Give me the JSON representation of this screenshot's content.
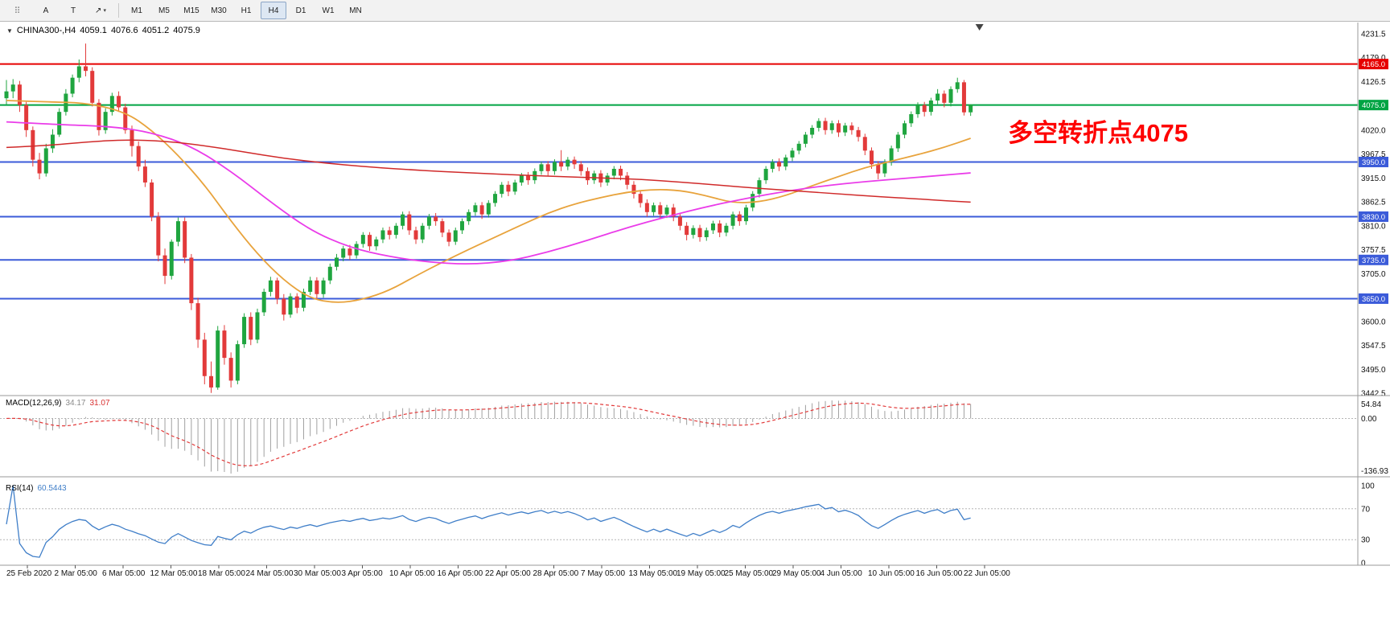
{
  "toolbar": {
    "tools": [
      {
        "name": "window-handle-icon",
        "glyph": "⠿"
      },
      {
        "name": "arrow-cursor-tool",
        "glyph": "A"
      },
      {
        "name": "text-tool",
        "glyph": "T"
      },
      {
        "name": "draw-arrow-tool",
        "glyph": "↗",
        "caret": "▾"
      }
    ],
    "timeframes": [
      "M1",
      "M5",
      "M15",
      "M30",
      "H1",
      "H4",
      "D1",
      "W1",
      "MN"
    ],
    "active_timeframe": "H4"
  },
  "chart": {
    "collapse_icon": "▼",
    "symbol_header": "CHINA300-,H4",
    "ohlc": {
      "open": "4059.1",
      "high": "4076.6",
      "low": "4051.2",
      "close": "4075.9"
    },
    "annotation": {
      "text": "多空转折点4075",
      "color": "#fe0000"
    },
    "price_axis": {
      "min": 3442.5,
      "max": 4231.5,
      "ticks": [
        4231.5,
        4179.0,
        4126.5,
        4020.0,
        3967.5,
        3915.0,
        3862.5,
        3810.0,
        3757.5,
        3705.0,
        3600.0,
        3547.5,
        3495.0,
        3442.5
      ],
      "badges": [
        {
          "price": 4165.0,
          "label": "4165.0",
          "color": "#e60000"
        },
        {
          "price": 4075.0,
          "label": "4075.0",
          "color": "#00a443"
        },
        {
          "price": 3950.0,
          "label": "3950.0",
          "color": "#3b5bd9"
        },
        {
          "price": 3830.0,
          "label": "3830.0",
          "color": "#3b5bd9"
        },
        {
          "price": 3735.0,
          "label": "3735.0",
          "color": "#3b5bd9"
        },
        {
          "price": 3650.0,
          "label": "3650.0",
          "color": "#3b5bd9"
        }
      ]
    },
    "hlines": [
      {
        "price": 4165.0,
        "color": "#e60000"
      },
      {
        "price": 4075.0,
        "color": "#00a443"
      },
      {
        "price": 3950.0,
        "color": "#3b5bd9"
      },
      {
        "price": 3830.0,
        "color": "#3b5bd9"
      },
      {
        "price": 3735.0,
        "color": "#3b5bd9"
      },
      {
        "price": 3650.0,
        "color": "#3b5bd9"
      }
    ],
    "time_axis": [
      "25 Feb 2020",
      "2 Mar 05:00",
      "6 Mar 05:00",
      "12 Mar 05:00",
      "18 Mar 05:00",
      "24 Mar 05:00",
      "30 Mar 05:00",
      "3 Apr 05:00",
      "10 Apr 05:00",
      "16 Apr 05:00",
      "22 Apr 05:00",
      "28 Apr 05:00",
      "7 May 05:00",
      "13 May 05:00",
      "19 May 05:00",
      "25 May 05:00",
      "29 May 05:00",
      "4 Jun 05:00",
      "10 Jun 05:00",
      "16 Jun 05:00",
      "22 Jun 05:00"
    ]
  },
  "chart_data": {
    "type": "candlestick",
    "symbol": "CHINA300-",
    "timeframe": "H4",
    "ylim": [
      3442.5,
      4231.5
    ],
    "bull_color": "#1fa53f",
    "bear_color": "#e23a3a",
    "candles": [
      [
        4090,
        4130,
        4075,
        4105
      ],
      [
        4105,
        4132,
        4090,
        4120
      ],
      [
        4120,
        4128,
        4060,
        4075
      ],
      [
        4075,
        4082,
        4005,
        4020
      ],
      [
        4020,
        4028,
        3940,
        3955
      ],
      [
        3955,
        3970,
        3912,
        3925
      ],
      [
        3925,
        3990,
        3918,
        3980
      ],
      [
        3980,
        4022,
        3970,
        4010
      ],
      [
        4010,
        4068,
        4005,
        4060
      ],
      [
        4060,
        4110,
        4052,
        4100
      ],
      [
        4100,
        4142,
        4092,
        4135
      ],
      [
        4135,
        4175,
        4125,
        4160
      ],
      [
        4160,
        4210,
        4138,
        4150
      ],
      [
        4150,
        4158,
        4072,
        4080
      ],
      [
        4080,
        4088,
        4008,
        4020
      ],
      [
        4020,
        4068,
        4012,
        4060
      ],
      [
        4060,
        4102,
        4052,
        4095
      ],
      [
        4095,
        4105,
        4060,
        4070
      ],
      [
        4070,
        4078,
        4012,
        4020
      ],
      [
        4020,
        4030,
        3962,
        3985
      ],
      [
        3985,
        3995,
        3930,
        3940
      ],
      [
        3940,
        3955,
        3895,
        3905
      ],
      [
        3905,
        3912,
        3820,
        3830
      ],
      [
        3830,
        3840,
        3732,
        3745
      ],
      [
        3745,
        3760,
        3682,
        3700
      ],
      [
        3700,
        3780,
        3692,
        3775
      ],
      [
        3775,
        3828,
        3765,
        3820
      ],
      [
        3820,
        3828,
        3728,
        3740
      ],
      [
        3740,
        3748,
        3625,
        3640
      ],
      [
        3640,
        3652,
        3542,
        3560
      ],
      [
        3560,
        3575,
        3462,
        3480
      ],
      [
        3480,
        3512,
        3443,
        3455
      ],
      [
        3455,
        3590,
        3450,
        3580
      ],
      [
        3580,
        3592,
        3505,
        3520
      ],
      [
        3520,
        3532,
        3455,
        3470
      ],
      [
        3470,
        3558,
        3462,
        3550
      ],
      [
        3550,
        3618,
        3542,
        3610
      ],
      [
        3610,
        3620,
        3548,
        3560
      ],
      [
        3560,
        3628,
        3552,
        3620
      ],
      [
        3620,
        3672,
        3612,
        3665
      ],
      [
        3665,
        3698,
        3655,
        3690
      ],
      [
        3690,
        3696,
        3638,
        3650
      ],
      [
        3650,
        3660,
        3602,
        3615
      ],
      [
        3615,
        3662,
        3608,
        3655
      ],
      [
        3655,
        3662,
        3618,
        3630
      ],
      [
        3630,
        3672,
        3622,
        3665
      ],
      [
        3665,
        3698,
        3658,
        3690
      ],
      [
        3690,
        3697,
        3648,
        3660
      ],
      [
        3660,
        3696,
        3652,
        3690
      ],
      [
        3690,
        3727,
        3682,
        3720
      ],
      [
        3720,
        3748,
        3712,
        3740
      ],
      [
        3740,
        3766,
        3732,
        3760
      ],
      [
        3760,
        3768,
        3735,
        3745
      ],
      [
        3745,
        3776,
        3738,
        3770
      ],
      [
        3770,
        3796,
        3762,
        3790
      ],
      [
        3790,
        3796,
        3755,
        3765
      ],
      [
        3765,
        3786,
        3756,
        3780
      ],
      [
        3780,
        3806,
        3772,
        3800
      ],
      [
        3800,
        3808,
        3780,
        3790
      ],
      [
        3790,
        3816,
        3782,
        3810
      ],
      [
        3810,
        3841,
        3802,
        3835
      ],
      [
        3835,
        3842,
        3790,
        3800
      ],
      [
        3800,
        3808,
        3770,
        3780
      ],
      [
        3780,
        3816,
        3772,
        3810
      ],
      [
        3810,
        3836,
        3802,
        3830
      ],
      [
        3830,
        3838,
        3810,
        3820
      ],
      [
        3820,
        3826,
        3785,
        3795
      ],
      [
        3795,
        3802,
        3765,
        3775
      ],
      [
        3775,
        3806,
        3768,
        3800
      ],
      [
        3800,
        3826,
        3792,
        3820
      ],
      [
        3820,
        3846,
        3812,
        3840
      ],
      [
        3840,
        3861,
        3832,
        3855
      ],
      [
        3855,
        3862,
        3825,
        3835
      ],
      [
        3835,
        3866,
        3828,
        3860
      ],
      [
        3860,
        3886,
        3852,
        3880
      ],
      [
        3880,
        3906,
        3872,
        3900
      ],
      [
        3900,
        3908,
        3875,
        3885
      ],
      [
        3885,
        3911,
        3878,
        3905
      ],
      [
        3905,
        3926,
        3898,
        3920
      ],
      [
        3920,
        3928,
        3900,
        3910
      ],
      [
        3910,
        3936,
        3902,
        3930
      ],
      [
        3930,
        3951,
        3922,
        3945
      ],
      [
        3945,
        3952,
        3920,
        3930
      ],
      [
        3930,
        3956,
        3922,
        3950
      ],
      [
        3950,
        3976,
        3930,
        3940
      ],
      [
        3940,
        3961,
        3932,
        3955
      ],
      [
        3955,
        3962,
        3935,
        3945
      ],
      [
        3945,
        3952,
        3920,
        3930
      ],
      [
        3930,
        3938,
        3900,
        3910
      ],
      [
        3910,
        3931,
        3902,
        3925
      ],
      [
        3925,
        3932,
        3895,
        3905
      ],
      [
        3905,
        3926,
        3898,
        3920
      ],
      [
        3920,
        3941,
        3912,
        3935
      ],
      [
        3935,
        3942,
        3910,
        3920
      ],
      [
        3920,
        3928,
        3890,
        3900
      ],
      [
        3900,
        3908,
        3870,
        3880
      ],
      [
        3880,
        3888,
        3850,
        3860
      ],
      [
        3860,
        3868,
        3830,
        3840
      ],
      [
        3840,
        3861,
        3832,
        3855
      ],
      [
        3855,
        3862,
        3825,
        3835
      ],
      [
        3835,
        3856,
        3827,
        3850
      ],
      [
        3850,
        3858,
        3820,
        3830
      ],
      [
        3830,
        3838,
        3800,
        3810
      ],
      [
        3810,
        3818,
        3778,
        3790
      ],
      [
        3790,
        3811,
        3782,
        3805
      ],
      [
        3805,
        3812,
        3775,
        3785
      ],
      [
        3785,
        3806,
        3777,
        3800
      ],
      [
        3800,
        3821,
        3792,
        3815
      ],
      [
        3815,
        3822,
        3785,
        3795
      ],
      [
        3795,
        3816,
        3787,
        3810
      ],
      [
        3810,
        3841,
        3802,
        3835
      ],
      [
        3835,
        3842,
        3810,
        3820
      ],
      [
        3820,
        3856,
        3812,
        3850
      ],
      [
        3850,
        3886,
        3842,
        3880
      ],
      [
        3880,
        3916,
        3872,
        3910
      ],
      [
        3910,
        3941,
        3902,
        3935
      ],
      [
        3935,
        3956,
        3927,
        3950
      ],
      [
        3950,
        3958,
        3930,
        3940
      ],
      [
        3940,
        3966,
        3932,
        3960
      ],
      [
        3960,
        3981,
        3952,
        3975
      ],
      [
        3975,
        3996,
        3967,
        3990
      ],
      [
        3990,
        4016,
        3982,
        4010
      ],
      [
        4010,
        4031,
        4002,
        4025
      ],
      [
        4025,
        4046,
        4017,
        4040
      ],
      [
        4040,
        4047,
        4010,
        4020
      ],
      [
        4020,
        4041,
        4012,
        4035
      ],
      [
        4035,
        4042,
        4005,
        4015
      ],
      [
        4015,
        4036,
        4007,
        4030
      ],
      [
        4030,
        4037,
        4010,
        4020
      ],
      [
        4020,
        4027,
        3995,
        4005
      ],
      [
        4005,
        4012,
        3965,
        3975
      ],
      [
        3975,
        3982,
        3935,
        3945
      ],
      [
        3945,
        3952,
        3912,
        3925
      ],
      [
        3925,
        3956,
        3917,
        3950
      ],
      [
        3950,
        3986,
        3942,
        3980
      ],
      [
        3980,
        4016,
        3972,
        4010
      ],
      [
        4010,
        4041,
        4002,
        4035
      ],
      [
        4035,
        4061,
        4027,
        4055
      ],
      [
        4055,
        4081,
        4047,
        4075
      ],
      [
        4075,
        4082,
        4050,
        4060
      ],
      [
        4060,
        4091,
        4052,
        4085
      ],
      [
        4085,
        4110,
        4077,
        4100
      ],
      [
        4100,
        4107,
        4070,
        4080
      ],
      [
        4080,
        4116,
        4072,
        4110
      ],
      [
        4110,
        4135,
        4102,
        4125
      ],
      [
        4125,
        4130,
        4052,
        4059
      ],
      [
        4059.1,
        4076.6,
        4051.2,
        4075.9
      ]
    ],
    "ma_lines": [
      {
        "name": "ma-fast-orange",
        "color": "#e8a33c",
        "width": 1.8,
        "points": [
          [
            0,
            4085
          ],
          [
            6,
            4082
          ],
          [
            12,
            4080
          ],
          [
            18,
            4060
          ],
          [
            22,
            4020
          ],
          [
            26,
            3965
          ],
          [
            30,
            3900
          ],
          [
            34,
            3820
          ],
          [
            38,
            3748
          ],
          [
            42,
            3690
          ],
          [
            46,
            3650
          ],
          [
            50,
            3640
          ],
          [
            54,
            3648
          ],
          [
            58,
            3668
          ],
          [
            62,
            3700
          ],
          [
            66,
            3730
          ],
          [
            70,
            3758
          ],
          [
            74,
            3785
          ],
          [
            78,
            3812
          ],
          [
            82,
            3838
          ],
          [
            86,
            3858
          ],
          [
            90,
            3872
          ],
          [
            94,
            3884
          ],
          [
            98,
            3890
          ],
          [
            102,
            3888
          ],
          [
            106,
            3876
          ],
          [
            110,
            3860
          ],
          [
            114,
            3862
          ],
          [
            118,
            3876
          ],
          [
            122,
            3898
          ],
          [
            126,
            3918
          ],
          [
            130,
            3938
          ],
          [
            134,
            3952
          ],
          [
            138,
            3966
          ],
          [
            142,
            3982
          ],
          [
            146,
            4002
          ]
        ]
      },
      {
        "name": "ma-mid-magenta",
        "color": "#ea3ce9",
        "width": 1.8,
        "points": [
          [
            0,
            4038
          ],
          [
            8,
            4032
          ],
          [
            16,
            4028
          ],
          [
            22,
            4015
          ],
          [
            28,
            3985
          ],
          [
            34,
            3930
          ],
          [
            40,
            3862
          ],
          [
            46,
            3800
          ],
          [
            52,
            3762
          ],
          [
            58,
            3742
          ],
          [
            64,
            3730
          ],
          [
            70,
            3725
          ],
          [
            76,
            3732
          ],
          [
            82,
            3752
          ],
          [
            88,
            3778
          ],
          [
            94,
            3806
          ],
          [
            100,
            3830
          ],
          [
            106,
            3852
          ],
          [
            112,
            3870
          ],
          [
            118,
            3886
          ],
          [
            124,
            3898
          ],
          [
            130,
            3907
          ],
          [
            136,
            3914
          ],
          [
            141,
            3920
          ],
          [
            146,
            3926
          ]
        ]
      },
      {
        "name": "ma-slow-red",
        "color": "#d02a2a",
        "width": 1.5,
        "points": [
          [
            0,
            3982
          ],
          [
            6,
            3986
          ],
          [
            12,
            3994
          ],
          [
            18,
            3999
          ],
          [
            24,
            3996
          ],
          [
            30,
            3986
          ],
          [
            36,
            3972
          ],
          [
            42,
            3958
          ],
          [
            48,
            3948
          ],
          [
            54,
            3940
          ],
          [
            60,
            3934
          ],
          [
            66,
            3929
          ],
          [
            72,
            3925
          ],
          [
            78,
            3921
          ],
          [
            84,
            3918
          ],
          [
            90,
            3915
          ],
          [
            96,
            3912
          ],
          [
            102,
            3906
          ],
          [
            108,
            3899
          ],
          [
            114,
            3892
          ],
          [
            120,
            3886
          ],
          [
            126,
            3880
          ],
          [
            132,
            3874
          ],
          [
            138,
            3869
          ],
          [
            142,
            3865
          ],
          [
            146,
            3862
          ]
        ]
      }
    ]
  },
  "macd": {
    "label": "MACD(12,26,9)",
    "value_main": "34.17",
    "value_signal": "31.07",
    "fast": 12,
    "slow": 26,
    "signal": 9,
    "axis": {
      "top": "54.84",
      "zero": "0.00",
      "bottom": "-136.93"
    },
    "histogram_color": "#a0a0a0",
    "signal_color": "#e23a3a"
  },
  "rsi": {
    "label": "RSI(14)",
    "value": "60.5443",
    "period": 14,
    "axis": {
      "top": "100",
      "upper": "70",
      "lower": "30",
      "bottom": "0"
    },
    "levels": [
      70,
      30
    ],
    "line_color": "#3f7ec8"
  }
}
